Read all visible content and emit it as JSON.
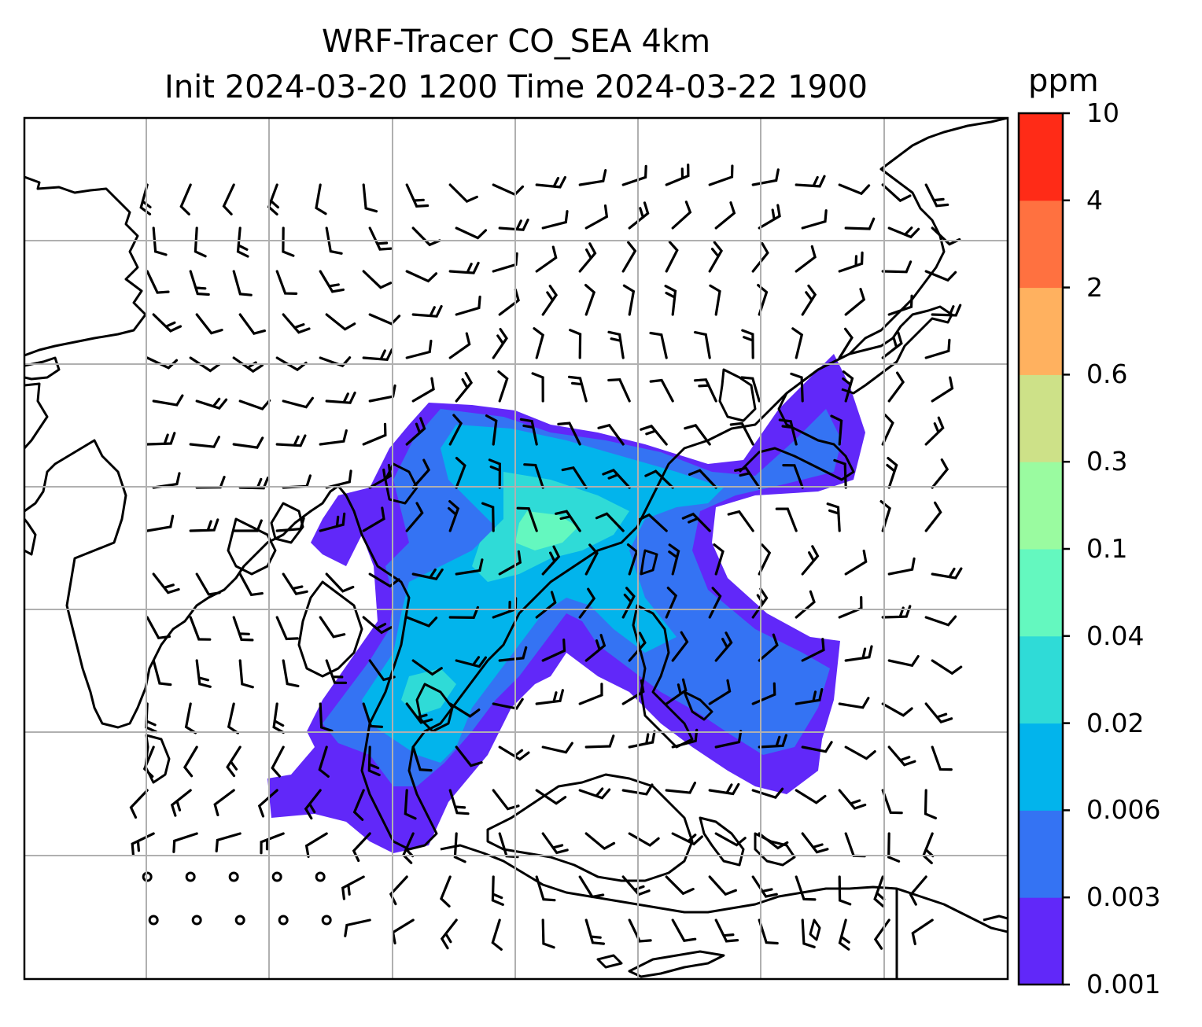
{
  "title": {
    "line1": "WRF-Tracer CO_SEA 4km",
    "line2": "Init 2024-03-20 1200 Time 2024-03-22 1900"
  },
  "colorbar": {
    "unit": "ppm",
    "ticks": [
      "0.001",
      "0.003",
      "0.006",
      "0.02",
      "0.04",
      "0.1",
      "0.3",
      "0.6",
      "2",
      "4",
      "10"
    ],
    "colors": [
      "#6128f9",
      "#3473f3",
      "#02b4ec",
      "#2fdbd7",
      "#64f8bf",
      "#9afba0",
      "#cde188",
      "#ffb15f",
      "#ff7140",
      "#ff2b17"
    ]
  },
  "map": {
    "grid": "on",
    "layers": [
      "coastlines",
      "wind-barbs",
      "co-tracer-contours"
    ]
  }
}
